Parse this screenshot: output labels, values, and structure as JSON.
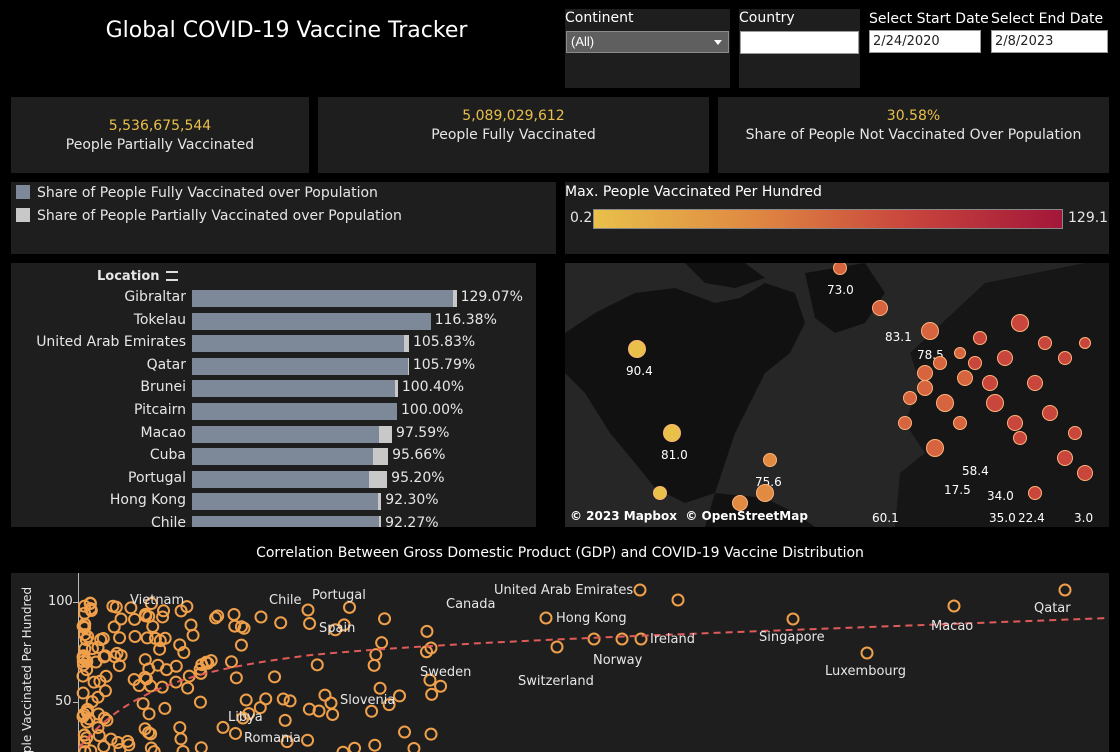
{
  "header": {
    "title": "Global COVID-19 Vaccine Tracker"
  },
  "filters": {
    "continent": {
      "label": "Continent",
      "value": "(All)"
    },
    "country": {
      "label": "Country",
      "value": ""
    },
    "start": {
      "label": "Select Start Date",
      "value": "2/24/2020"
    },
    "end": {
      "label": "Select End Date",
      "value": "2/8/2023"
    }
  },
  "kpis": [
    {
      "value": "5,536,675,544",
      "label": "People Partially Vaccinated"
    },
    {
      "value": "5,089,029,612",
      "label": "People Fully Vaccinated"
    },
    {
      "value": "30.58%",
      "label": "Share of People Not Vaccinated Over Population"
    }
  ],
  "legend": {
    "full": "Share of People Fully Vaccinated over Population",
    "partial": "Share of People Partially Vaccinated over Population",
    "full_color": "#7d8899",
    "partial_color": "#c8c8c8"
  },
  "color_scale": {
    "title": "Max. People Vaccinated Per Hundred",
    "min": "0.2",
    "max": "129.1",
    "low_color": "#e8c04a",
    "high_color": "#a3163a"
  },
  "bar_chart": {
    "header": "Location",
    "rows": [
      {
        "location": "Gibraltar",
        "full": 127.5,
        "total": 129.07,
        "label": "129.07%"
      },
      {
        "location": "Tokelau",
        "full": 116.38,
        "total": 116.38,
        "label": "116.38%"
      },
      {
        "location": "United Arab Emirates",
        "full": 103.5,
        "total": 105.83,
        "label": "105.83%"
      },
      {
        "location": "Qatar",
        "full": 105.3,
        "total": 105.79,
        "label": "105.79%"
      },
      {
        "location": "Brunei",
        "full": 99.2,
        "total": 100.4,
        "label": "100.40%"
      },
      {
        "location": "Pitcairn",
        "full": 100.0,
        "total": 100.0,
        "label": "100.00%"
      },
      {
        "location": "Macao",
        "full": 91.0,
        "total": 97.59,
        "label": "97.59%"
      },
      {
        "location": "Cuba",
        "full": 88.5,
        "total": 95.66,
        "label": "95.66%"
      },
      {
        "location": "Portugal",
        "full": 86.5,
        "total": 95.2,
        "label": "95.20%"
      },
      {
        "location": "Hong Kong",
        "full": 90.5,
        "total": 92.3,
        "label": "92.30%"
      },
      {
        "location": "Chile",
        "full": 91.2,
        "total": 92.27,
        "label": "92.27%"
      }
    ]
  },
  "map": {
    "attribution": "© 2023 Mapbox  © OpenStreetMap",
    "labels": [
      "73.0",
      "83.1",
      "78.5",
      "90.4",
      "81.0",
      "75.6",
      "58.4",
      "17.5",
      "34.0",
      "60.1",
      "35.0",
      "22.4",
      "3.0"
    ]
  },
  "scatter": {
    "title": "Correlation Between Gross Domestic Product (GDP) and COVID-19 Vaccine Distribution",
    "ylabel": "ple Vaccinated Per Hundred",
    "y_ticks": [
      "100",
      "50"
    ],
    "labels": [
      "Vietnam",
      "Chile",
      "Portugal",
      "Canada",
      "United Arab Emirates",
      "Qatar",
      "Spain",
      "Hong Kong",
      "Ireland",
      "Singapore",
      "Macao",
      "Norway",
      "Sweden",
      "Switzerland",
      "Luxembourg",
      "Slovenia",
      "Libya",
      "Romania"
    ],
    "point_color": "#f0a04b",
    "trend_color": "#e05a5a"
  },
  "chart_data": {
    "type": "bar",
    "categories": [
      "Gibraltar",
      "Tokelau",
      "United Arab Emirates",
      "Qatar",
      "Brunei",
      "Pitcairn",
      "Macao",
      "Cuba",
      "Portugal",
      "Hong Kong",
      "Chile"
    ],
    "series": [
      {
        "name": "Share of People Fully Vaccinated over Population",
        "values": [
          127.5,
          116.38,
          103.5,
          105.3,
          99.2,
          100.0,
          91.0,
          88.5,
          86.5,
          90.5,
          91.2
        ]
      },
      {
        "name": "Share of People Partially Vaccinated over Population",
        "values": [
          1.57,
          0,
          2.33,
          0.49,
          1.2,
          0,
          6.59,
          7.16,
          8.7,
          1.8,
          1.07
        ]
      }
    ],
    "xlabel": "",
    "ylabel": "Location"
  }
}
